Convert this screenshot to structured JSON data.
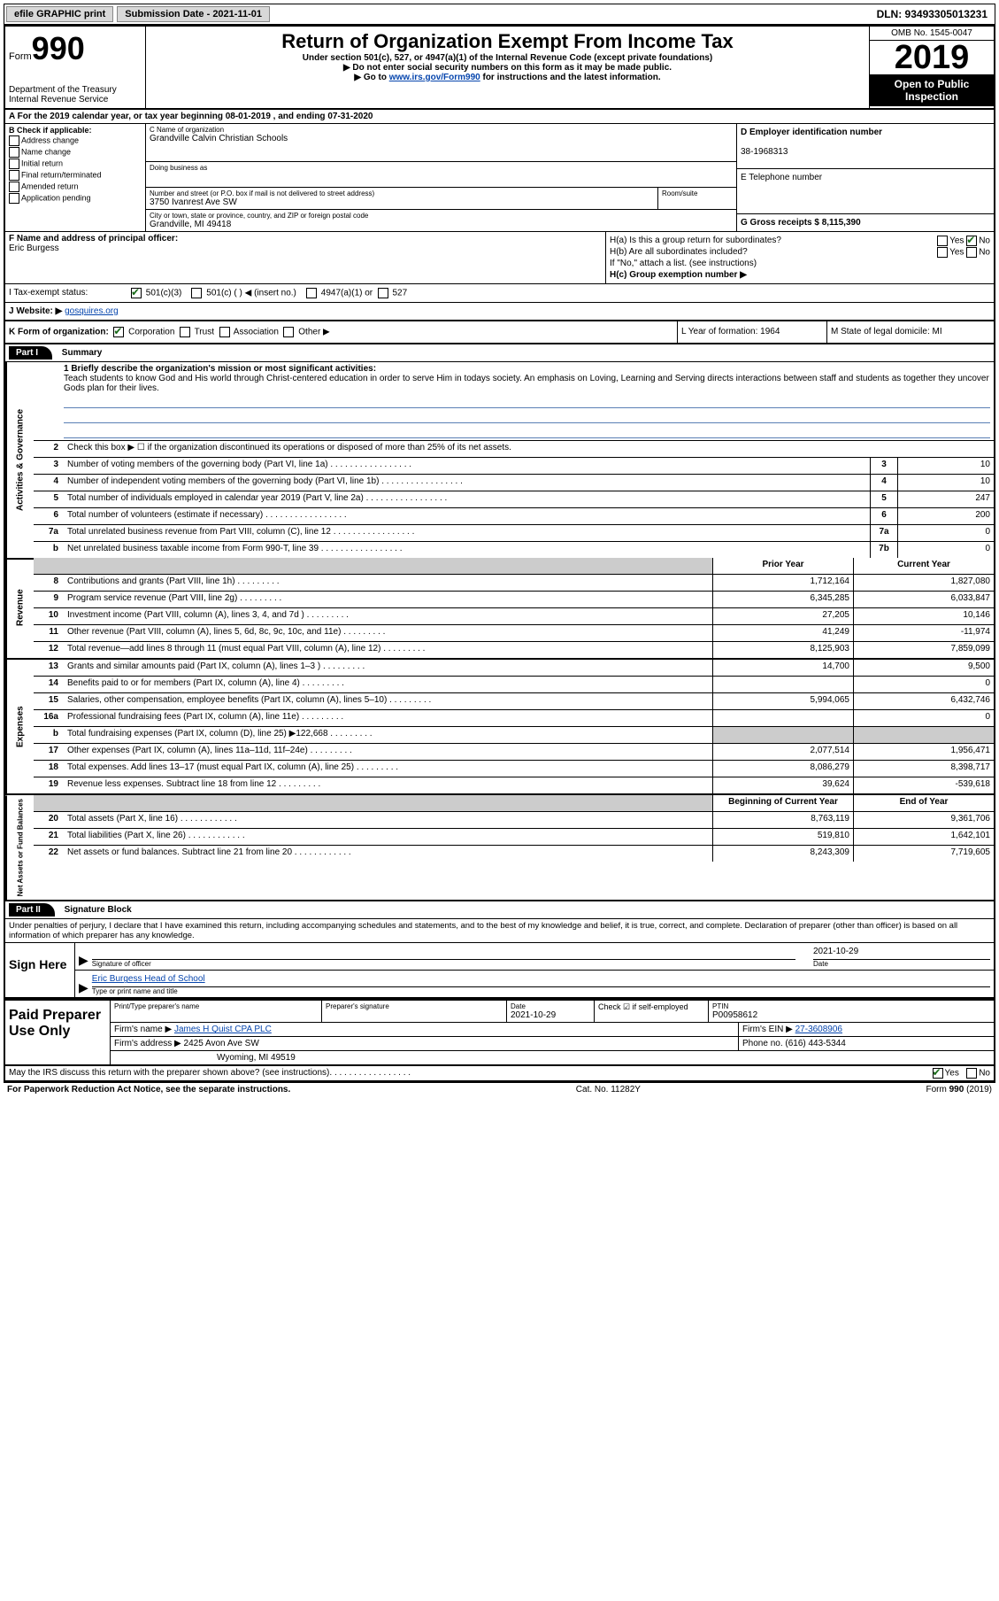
{
  "topbar": {
    "efile": "efile GRAPHIC print",
    "submission_label": "Submission Date - 2021-11-01",
    "dln": "DLN: 93493305013231"
  },
  "header": {
    "form_small": "Form",
    "form_big": "990",
    "dept": "Department of the Treasury",
    "irs": "Internal Revenue Service",
    "title": "Return of Organization Exempt From Income Tax",
    "sub1": "Under section 501(c), 527, or 4947(a)(1) of the Internal Revenue Code (except private foundations)",
    "sub2": "▶ Do not enter social security numbers on this form as it may be made public.",
    "sub3_pre": "▶ Go to ",
    "sub3_link": "www.irs.gov/Form990",
    "sub3_post": " for instructions and the latest information.",
    "omb": "OMB No. 1545-0047",
    "year": "2019",
    "open": "Open to Public Inspection"
  },
  "rowA": "A For the 2019 calendar year, or tax year beginning 08-01-2019    , and ending 07-31-2020",
  "sectionB": {
    "left_header": "B Check if applicable:",
    "checks": [
      "Address change",
      "Name change",
      "Initial return",
      "Final return/terminated",
      "Amended return",
      "Application pending"
    ],
    "c_label": "C Name of organization",
    "org_name": "Grandville Calvin Christian Schools",
    "dba_label": "Doing business as",
    "addr_label": "Number and street (or P.O. box if mail is not delivered to street address)",
    "addr": "3750 Ivanrest Ave SW",
    "suite_label": "Room/suite",
    "city_label": "City or town, state or province, country, and ZIP or foreign postal code",
    "city": "Grandville, MI  49418",
    "d_label": "D Employer identification number",
    "ein": "38-1968313",
    "e_label": "E Telephone number",
    "g_label": "G Gross receipts $ 8,115,390"
  },
  "sectionFH": {
    "f_label": "F  Name and address of principal officer:",
    "f_name": "Eric Burgess",
    "ha_label": "H(a)  Is this a group return for subordinates?",
    "ha_yes": "Yes",
    "ha_no": "No",
    "hb_label": "H(b)  Are all subordinates included?",
    "hb_note": "If \"No,\" attach a list. (see instructions)",
    "hc_label": "H(c)  Group exemption number ▶"
  },
  "status": {
    "i_label": "I  Tax-exempt status:",
    "c3": "501(c)(3)",
    "cblank": "501(c) (  ) ◀ (insert no.)",
    "c4947": "4947(a)(1) or",
    "c527": "527"
  },
  "rowJ": {
    "label": "J  Website: ▶ ",
    "site": "gosquires.org"
  },
  "rowKLM": {
    "k_label": "K Form of organization:",
    "k_corp": "Corporation",
    "k_trust": "Trust",
    "k_assoc": "Association",
    "k_other": "Other ▶",
    "l_label": "L Year of formation: 1964",
    "m_label": "M State of legal domicile: MI"
  },
  "part1": {
    "header": "Part I",
    "title": "Summary",
    "line1_label": "1  Briefly describe the organization's mission or most significant activities:",
    "mission": "Teach students to know God and His world through Christ-centered education in order to serve Him in todays society. An emphasis on Loving, Learning and Serving directs interactions between staff and students as together they uncover Gods plan for their lives.",
    "line2": "Check this box ▶ ☐  if the organization discontinued its operations or disposed of more than 25% of its net assets.",
    "gov_lines": [
      {
        "n": "3",
        "t": "Number of voting members of the governing body (Part VI, line 1a)",
        "box": "3",
        "v": "10"
      },
      {
        "n": "4",
        "t": "Number of independent voting members of the governing body (Part VI, line 1b)",
        "box": "4",
        "v": "10"
      },
      {
        "n": "5",
        "t": "Total number of individuals employed in calendar year 2019 (Part V, line 2a)",
        "box": "5",
        "v": "247"
      },
      {
        "n": "6",
        "t": "Total number of volunteers (estimate if necessary)",
        "box": "6",
        "v": "200"
      },
      {
        "n": "7a",
        "t": "Total unrelated business revenue from Part VIII, column (C), line 12",
        "box": "7a",
        "v": "0"
      },
      {
        "n": "b",
        "t": "Net unrelated business taxable income from Form 990-T, line 39",
        "box": "7b",
        "v": "0"
      }
    ],
    "prior_header": "Prior Year",
    "curr_header": "Current Year",
    "revenue_lines": [
      {
        "n": "8",
        "t": "Contributions and grants (Part VIII, line 1h)",
        "p": "1,712,164",
        "c": "1,827,080"
      },
      {
        "n": "9",
        "t": "Program service revenue (Part VIII, line 2g)",
        "p": "6,345,285",
        "c": "6,033,847"
      },
      {
        "n": "10",
        "t": "Investment income (Part VIII, column (A), lines 3, 4, and 7d )",
        "p": "27,205",
        "c": "10,146"
      },
      {
        "n": "11",
        "t": "Other revenue (Part VIII, column (A), lines 5, 6d, 8c, 9c, 10c, and 11e)",
        "p": "41,249",
        "c": "-11,974"
      },
      {
        "n": "12",
        "t": "Total revenue—add lines 8 through 11 (must equal Part VIII, column (A), line 12)",
        "p": "8,125,903",
        "c": "7,859,099"
      }
    ],
    "expense_lines": [
      {
        "n": "13",
        "t": "Grants and similar amounts paid (Part IX, column (A), lines 1–3 )",
        "p": "14,700",
        "c": "9,500"
      },
      {
        "n": "14",
        "t": "Benefits paid to or for members (Part IX, column (A), line 4)",
        "p": "",
        "c": "0"
      },
      {
        "n": "15",
        "t": "Salaries, other compensation, employee benefits (Part IX, column (A), lines 5–10)",
        "p": "5,994,065",
        "c": "6,432,746"
      },
      {
        "n": "16a",
        "t": "Professional fundraising fees (Part IX, column (A), line 11e)",
        "p": "",
        "c": "0"
      },
      {
        "n": "b",
        "t": "Total fundraising expenses (Part IX, column (D), line 25) ▶122,668",
        "p": "SHADE",
        "c": "SHADE"
      },
      {
        "n": "17",
        "t": "Other expenses (Part IX, column (A), lines 11a–11d, 11f–24e)",
        "p": "2,077,514",
        "c": "1,956,471"
      },
      {
        "n": "18",
        "t": "Total expenses. Add lines 13–17 (must equal Part IX, column (A), line 25)",
        "p": "8,086,279",
        "c": "8,398,717"
      },
      {
        "n": "19",
        "t": "Revenue less expenses. Subtract line 18 from line 12",
        "p": "39,624",
        "c": "-539,618"
      }
    ],
    "net_header_prior": "Beginning of Current Year",
    "net_header_curr": "End of Year",
    "net_lines": [
      {
        "n": "20",
        "t": "Total assets (Part X, line 16)",
        "p": "8,763,119",
        "c": "9,361,706"
      },
      {
        "n": "21",
        "t": "Total liabilities (Part X, line 26)",
        "p": "519,810",
        "c": "1,642,101"
      },
      {
        "n": "22",
        "t": "Net assets or fund balances. Subtract line 21 from line 20",
        "p": "8,243,309",
        "c": "7,719,605"
      }
    ],
    "side_gov": "Activities & Governance",
    "side_rev": "Revenue",
    "side_exp": "Expenses",
    "side_net": "Net Assets or Fund Balances"
  },
  "part2": {
    "header": "Part II",
    "title": "Signature Block",
    "declare": "Under penalties of perjury, I declare that I have examined this return, including accompanying schedules and statements, and to the best of my knowledge and belief, it is true, correct, and complete. Declaration of preparer (other than officer) is based on all information of which preparer has any knowledge.",
    "sign_here": "Sign Here",
    "sig_officer": "Signature of officer",
    "sig_date": "2021-10-29",
    "date_label": "Date",
    "officer_name": "Eric Burgess  Head of School",
    "type_label": "Type or print name and title",
    "paid": "Paid Preparer Use Only",
    "prep_name_label": "Print/Type preparer's name",
    "prep_sig_label": "Preparer's signature",
    "prep_date": "2021-10-29",
    "check_self": "Check ☑ if self-employed",
    "ptin_label": "PTIN",
    "ptin": "P00958612",
    "firm_name_label": "Firm's name    ▶",
    "firm_name": "James H Quist CPA PLC",
    "firm_ein_label": "Firm's EIN ▶",
    "firm_ein": "27-3608906",
    "firm_addr_label": "Firm's address ▶",
    "firm_addr1": "2425 Avon Ave SW",
    "firm_addr2": "Wyoming, MI  49519",
    "phone_label": "Phone no. (616) 443-5344",
    "discuss": "May the IRS discuss this return with the preparer shown above? (see instructions)",
    "yes": "Yes",
    "no": "No"
  },
  "footer": {
    "paperwork": "For Paperwork Reduction Act Notice, see the separate instructions.",
    "cat": "Cat. No. 11282Y",
    "form": "Form 990 (2019)"
  }
}
